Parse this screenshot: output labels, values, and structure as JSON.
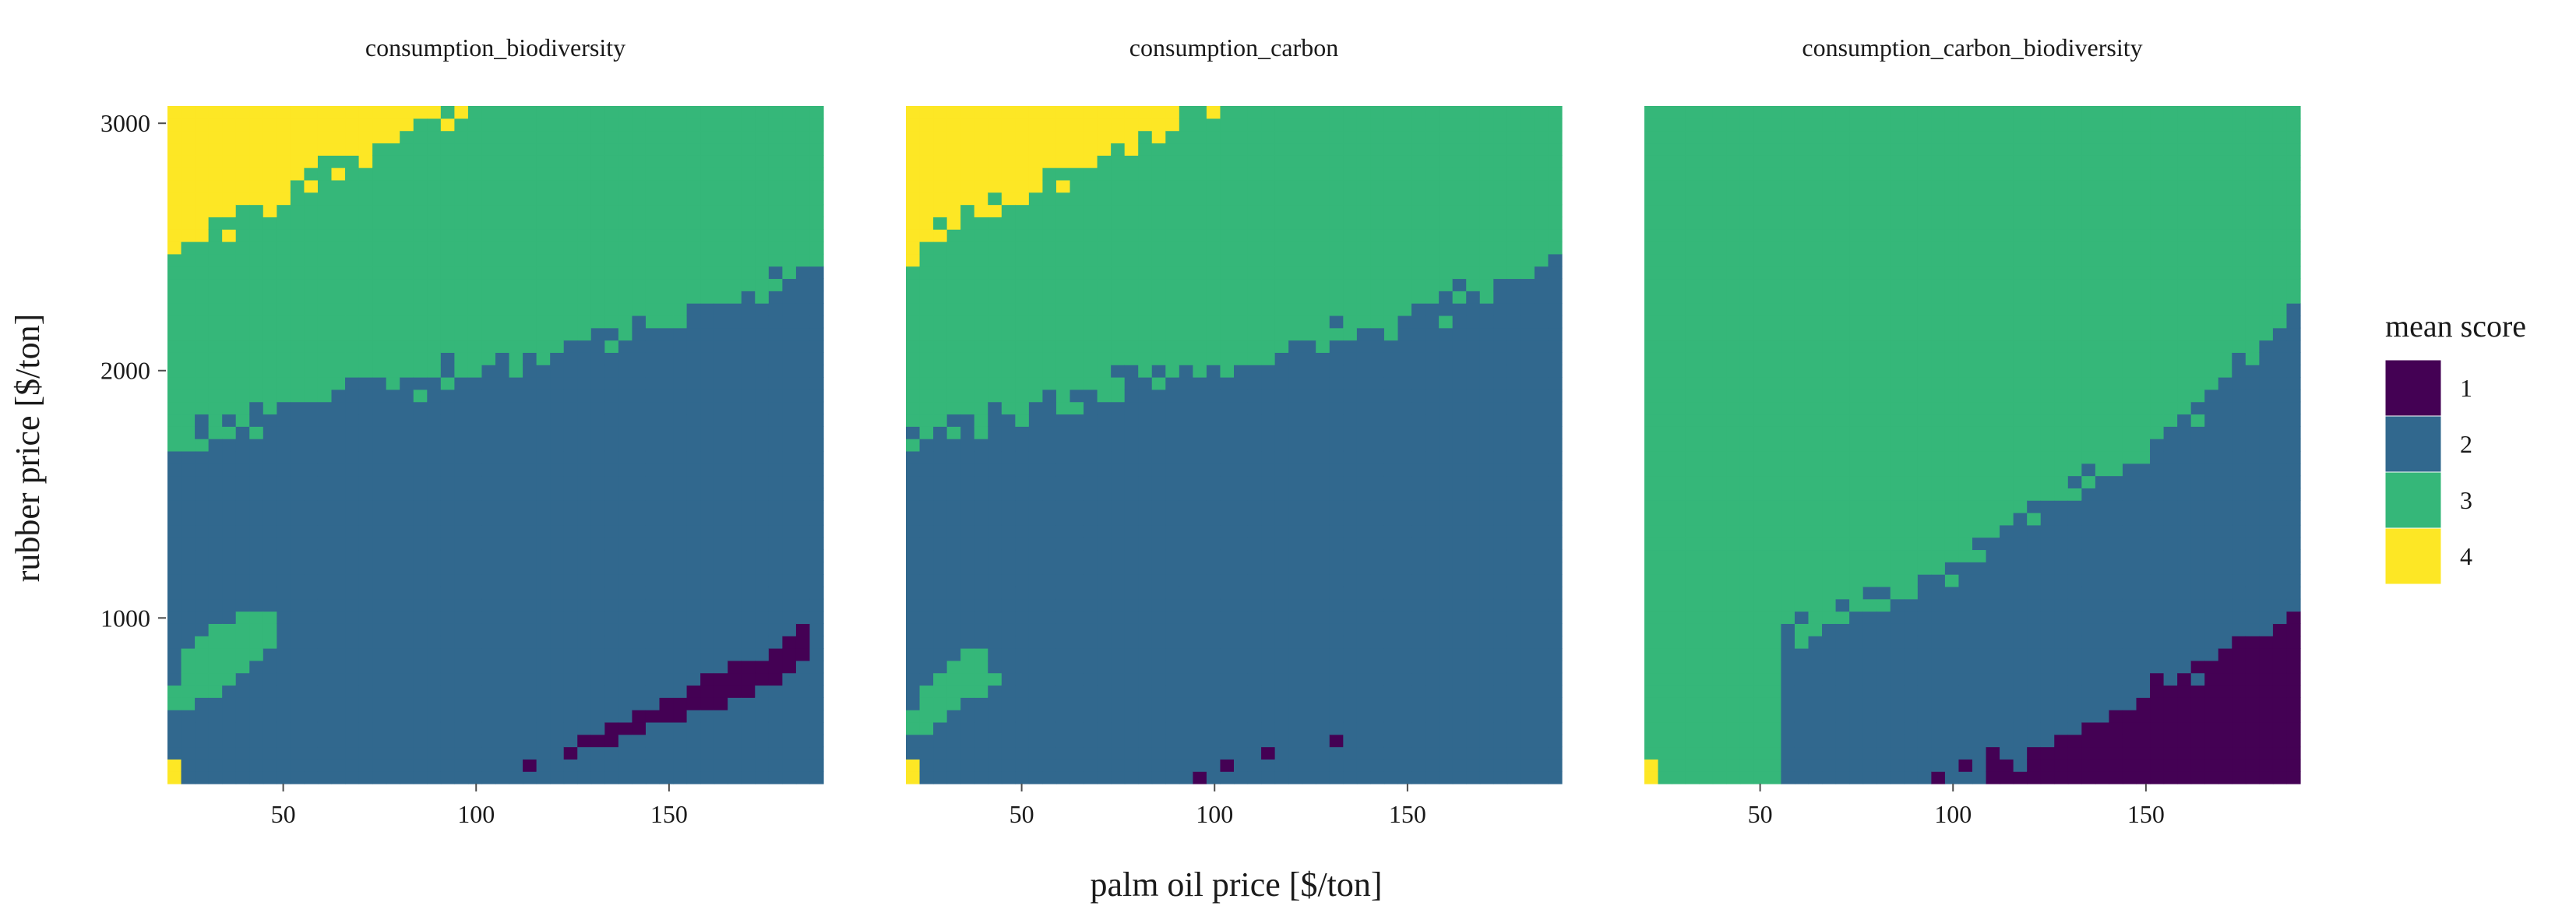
{
  "chart_data": {
    "type": "heatmap",
    "xlabel": "palm oil price [$/ton]",
    "ylabel": "rubber price [$/ton]",
    "xlim": [
      20,
      190
    ],
    "ylim": [
      330,
      3070
    ],
    "x_ticks": [
      50,
      100,
      150
    ],
    "y_ticks": [
      1000,
      2000,
      3000
    ],
    "grid": false,
    "legend": {
      "title": "mean score",
      "position": "right",
      "entries": [
        {
          "value": 1,
          "label": "1",
          "color": "#440154"
        },
        {
          "value": 2,
          "label": "2",
          "color": "#31688e"
        },
        {
          "value": 3,
          "label": "3",
          "color": "#35b779"
        },
        {
          "value": 4,
          "label": "4",
          "color": "#fde725"
        }
      ]
    },
    "panels": [
      {
        "title": "consumption_biodiversity",
        "regions": {
          "score4_upper_boundary": [
            [
              20,
              2450
            ],
            [
              30,
              2550
            ],
            [
              50,
              2700
            ],
            [
              70,
              2870
            ],
            [
              90,
              3000
            ],
            [
              100,
              3070
            ]
          ],
          "score3_upper_boundary": [
            [
              20,
              1720
            ],
            [
              40,
              1800
            ],
            [
              60,
              1880
            ],
            [
              80,
              1960
            ],
            [
              100,
              2010
            ],
            [
              120,
              2080
            ],
            [
              140,
              2180
            ],
            [
              160,
              2260
            ],
            [
              180,
              2360
            ],
            [
              190,
              2460
            ]
          ],
          "score3_lower_left_patch": [
            [
              20,
              600
            ],
            [
              35,
              700
            ],
            [
              45,
              820
            ],
            [
              50,
              920
            ],
            [
              45,
              1050
            ],
            [
              35,
              1000
            ],
            [
              28,
              900
            ],
            [
              22,
              800
            ]
          ],
          "score1_patch": [
            [
              110,
              380
            ],
            [
              125,
              480
            ],
            [
              140,
              600
            ],
            [
              160,
              760
            ],
            [
              175,
              850
            ],
            [
              190,
              1030
            ],
            [
              185,
              800
            ],
            [
              165,
              650
            ],
            [
              140,
              530
            ],
            [
              120,
              420
            ]
          ]
        }
      },
      {
        "title": "consumption_carbon",
        "regions": {
          "score4_upper_boundary": [
            [
              20,
              2450
            ],
            [
              30,
              2550
            ],
            [
              50,
              2700
            ],
            [
              70,
              2870
            ],
            [
              90,
              3000
            ],
            [
              100,
              3070
            ]
          ],
          "score3_upper_boundary": [
            [
              20,
              1720
            ],
            [
              40,
              1800
            ],
            [
              60,
              1880
            ],
            [
              80,
              1960
            ],
            [
              100,
              2010
            ],
            [
              120,
              2080
            ],
            [
              140,
              2180
            ],
            [
              160,
              2260
            ],
            [
              180,
              2360
            ],
            [
              190,
              2460
            ]
          ],
          "score3_lower_left_patch": [
            [
              20,
              500
            ],
            [
              30,
              600
            ],
            [
              40,
              700
            ],
            [
              45,
              800
            ],
            [
              40,
              900
            ],
            [
              30,
              800
            ],
            [
              22,
              700
            ]
          ],
          "score1_patch": [
            [
              90,
              330
            ],
            [
              100,
              400
            ],
            [
              115,
              440
            ],
            [
              130,
              480
            ],
            [
              135,
              540
            ],
            [
              125,
              470
            ],
            [
              110,
              430
            ]
          ]
        }
      },
      {
        "title": "consumption_carbon_biodiversity",
        "regions": {
          "score3_upper_boundary": [
            [
              20,
              3070
            ],
            [
              190,
              3070
            ]
          ],
          "score2_wedge": [
            [
              60,
              950
            ],
            [
              80,
              1050
            ],
            [
              100,
              1200
            ],
            [
              120,
              1400
            ],
            [
              140,
              1600
            ],
            [
              160,
              1800
            ],
            [
              180,
              2100
            ],
            [
              190,
              2300
            ]
          ],
          "score1_patch": [
            [
              90,
              330
            ],
            [
              110,
              400
            ],
            [
              130,
              520
            ],
            [
              150,
              700
            ],
            [
              170,
              860
            ],
            [
              190,
              1030
            ]
          ]
        }
      }
    ]
  }
}
